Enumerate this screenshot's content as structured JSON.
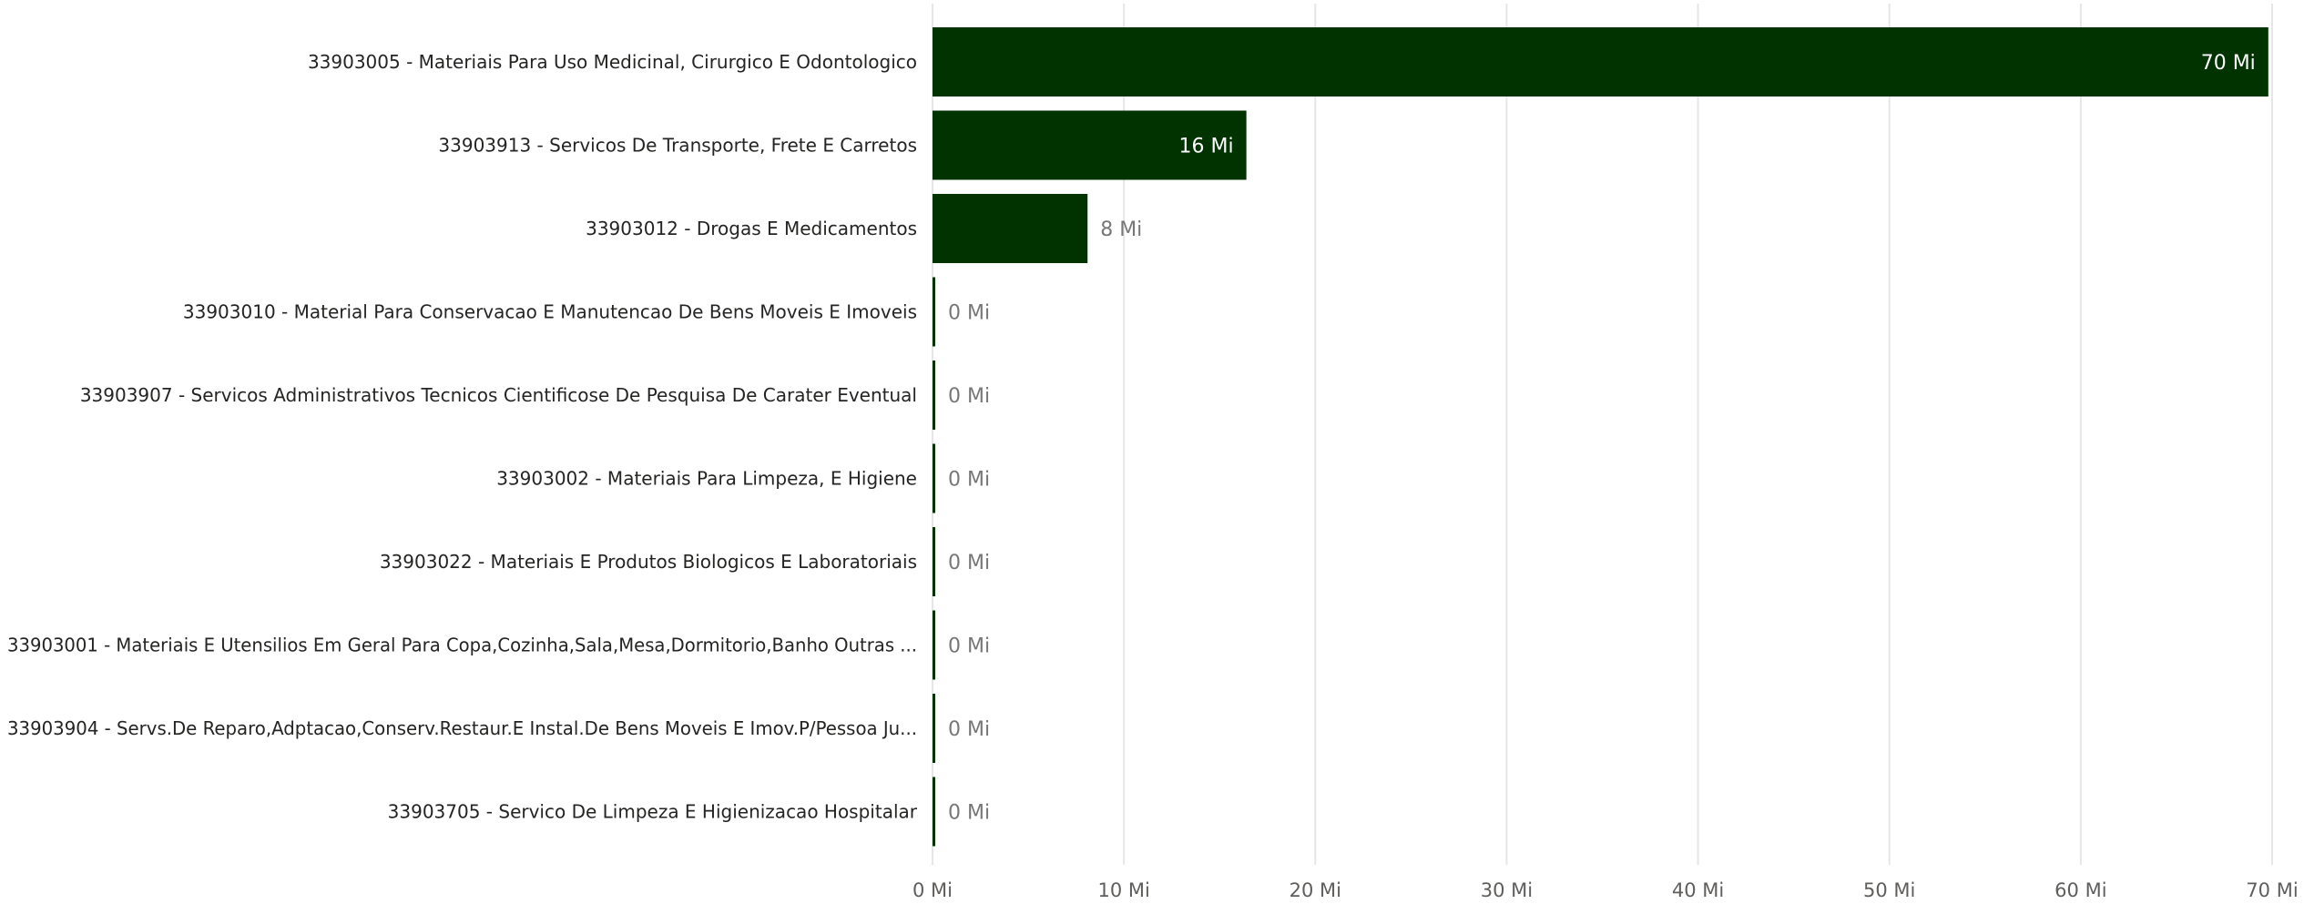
{
  "chart_data": {
    "type": "bar",
    "orientation": "horizontal",
    "categories": [
      "33903005 - Materiais Para Uso Medicinal, Cirurgico E Odontologico",
      "33903913 - Servicos De Transporte, Frete E Carretos",
      "33903012 - Drogas E Medicamentos",
      "33903010 - Material Para Conservacao E Manutencao De Bens Moveis E Imoveis",
      "33903907 - Servicos Administrativos Tecnicos Cientificose De Pesquisa De Carater Eventual",
      "33903002 - Materiais Para Limpeza, E Higiene",
      "33903022 - Materiais E Produtos Biologicos E Laboratoriais",
      "33903001 - Materiais E Utensilios Em Geral Para Copa,Cozinha,Sala,Mesa,Dormitorio,Banho Outras ...",
      "33903904 - Servs.De Reparo,Adptacao,Conserv.Restaur.E Instal.De Bens Moveis E Imov.P/Pessoa Ju...",
      "33903705 - Servico De Limpeza E Higienizacao Hospitalar"
    ],
    "values": [
      69.8,
      16.4,
      8.1,
      0.1,
      0.1,
      0.1,
      0.1,
      0.1,
      0.1,
      0.1
    ],
    "data_labels": [
      "70 Mi",
      "16 Mi",
      "8 Mi",
      "0 Mi",
      "0 Mi",
      "0 Mi",
      "0 Mi",
      "0 Mi",
      "0 Mi",
      "0 Mi"
    ],
    "x_ticks": [
      0,
      10,
      20,
      30,
      40,
      50,
      60,
      70
    ],
    "x_tick_labels": [
      "0 Mi",
      "10 Mi",
      "20 Mi",
      "30 Mi",
      "40 Mi",
      "50 Mi",
      "60 Mi",
      "70 Mi"
    ],
    "xlim": [
      0,
      70
    ],
    "title": "",
    "xlabel": "",
    "ylabel": "",
    "grid": true,
    "colors": {
      "bar": "#003300",
      "label_inside": "#ffffff",
      "label_outside": "#777777"
    }
  }
}
